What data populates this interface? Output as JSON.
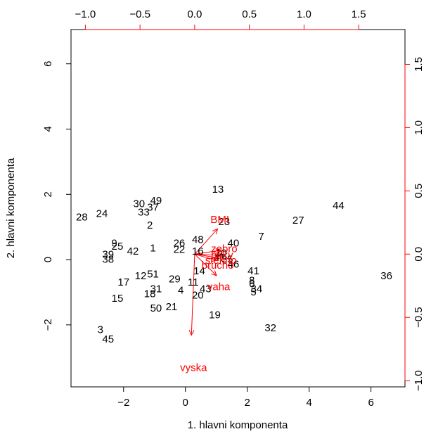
{
  "chart_data": {
    "type": "biplot",
    "xlabel": "1. hlavni komponenta",
    "ylabel": "2. hlavni komponenta",
    "bottom_ticks": [
      "−2",
      "0",
      "2",
      "4",
      "6"
    ],
    "bottom_tick_values": [
      -2,
      0,
      2,
      4,
      6
    ],
    "left_ticks": [
      "−2",
      "0",
      "2",
      "4",
      "6"
    ],
    "left_tick_values": [
      -2,
      0,
      2,
      4,
      6
    ],
    "top_ticks": [
      "−1.0",
      "−0.5",
      "0.0",
      "0.5",
      "1.0",
      "1.5"
    ],
    "top_tick_values": [
      -1.0,
      -0.5,
      0.0,
      0.5,
      1.0,
      1.5
    ],
    "right_ticks": [
      "−1.0",
      "−0.5",
      "0.0",
      "0.5",
      "1.0",
      "1.5"
    ],
    "right_tick_values": [
      -1.0,
      -0.5,
      0.0,
      0.5,
      1.0,
      1.5
    ],
    "xlim": [
      -3.7,
      7.1
    ],
    "ylim": [
      -3.9,
      7.05
    ],
    "loading_xlim": [
      -1.131,
      1.923
    ],
    "loading_ylim": [
      -1.049,
      1.775
    ],
    "scores_color": "#000000",
    "loadings_color": "#ff0000",
    "observations": [
      {
        "label": "1",
        "x": -1.05,
        "y": 0.35
      },
      {
        "label": "2",
        "x": -1.15,
        "y": 1.05
      },
      {
        "label": "3",
        "x": -2.75,
        "y": -2.15
      },
      {
        "label": "4",
        "x": -0.15,
        "y": -0.95
      },
      {
        "label": "5",
        "x": 2.2,
        "y": -1.0
      },
      {
        "label": "6",
        "x": 2.15,
        "y": -0.75
      },
      {
        "label": "7",
        "x": 2.45,
        "y": 0.7
      },
      {
        "label": "8",
        "x": 2.15,
        "y": -0.65
      },
      {
        "label": "9",
        "x": -2.3,
        "y": 0.5
      },
      {
        "label": "10",
        "x": 1.15,
        "y": 0.2
      },
      {
        "label": "11",
        "x": 0.25,
        "y": -0.7
      },
      {
        "label": "12",
        "x": -1.45,
        "y": -0.5
      },
      {
        "label": "13",
        "x": 1.05,
        "y": 2.15
      },
      {
        "label": "14",
        "x": 0.45,
        "y": -0.35
      },
      {
        "label": "15",
        "x": -2.2,
        "y": -1.2
      },
      {
        "label": "16",
        "x": 0.4,
        "y": 0.25
      },
      {
        "label": "17",
        "x": -2.0,
        "y": -0.7
      },
      {
        "label": "18",
        "x": -1.15,
        "y": -1.05
      },
      {
        "label": "19",
        "x": 0.95,
        "y": -1.7
      },
      {
        "label": "20",
        "x": 0.4,
        "y": -1.1
      },
      {
        "label": "21",
        "x": -0.45,
        "y": -1.45
      },
      {
        "label": "22",
        "x": -0.2,
        "y": 0.3
      },
      {
        "label": "23",
        "x": 1.25,
        "y": 1.15
      },
      {
        "label": "24",
        "x": -2.7,
        "y": 1.4
      },
      {
        "label": "25",
        "x": -2.2,
        "y": 0.4
      },
      {
        "label": "26",
        "x": -0.2,
        "y": 0.5
      },
      {
        "label": "27",
        "x": 3.65,
        "y": 1.2
      },
      {
        "label": "28",
        "x": -3.35,
        "y": 1.3
      },
      {
        "label": "29",
        "x": -0.35,
        "y": -0.6
      },
      {
        "label": "30",
        "x": -1.5,
        "y": 1.7
      },
      {
        "label": "31",
        "x": -0.95,
        "y": -0.9
      },
      {
        "label": "32",
        "x": 2.75,
        "y": -2.1
      },
      {
        "label": "33",
        "x": -1.35,
        "y": 1.45
      },
      {
        "label": "34",
        "x": 2.3,
        "y": -0.9
      },
      {
        "label": "35",
        "x": 1.35,
        "y": 0.0
      },
      {
        "label": "36",
        "x": 6.5,
        "y": -0.5
      },
      {
        "label": "37",
        "x": -1.05,
        "y": 1.6
      },
      {
        "label": "38",
        "x": -2.5,
        "y": 0.0
      },
      {
        "label": "39",
        "x": -2.5,
        "y": 0.15
      },
      {
        "label": "40",
        "x": 1.55,
        "y": 0.5
      },
      {
        "label": "41",
        "x": 2.2,
        "y": -0.35
      },
      {
        "label": "42",
        "x": -1.7,
        "y": 0.25
      },
      {
        "label": "43",
        "x": 0.65,
        "y": -0.9
      },
      {
        "label": "44",
        "x": 4.95,
        "y": 1.65
      },
      {
        "label": "45",
        "x": -2.5,
        "y": -2.45
      },
      {
        "label": "46",
        "x": 1.55,
        "y": -0.15
      },
      {
        "label": "47",
        "x": 1.1,
        "y": 0.05
      },
      {
        "label": "48",
        "x": 0.4,
        "y": 0.6
      },
      {
        "label": "49",
        "x": -0.95,
        "y": 1.8
      },
      {
        "label": "50",
        "x": -0.95,
        "y": -1.5
      },
      {
        "label": "51",
        "x": -1.05,
        "y": -0.45
      }
    ],
    "variables": [
      {
        "label": "BMI",
        "x": 0.21,
        "y": 0.2
      },
      {
        "label": "zebro",
        "x": 0.24,
        "y": 0.03
      },
      {
        "label": "boky",
        "x": 0.24,
        "y": -0.01
      },
      {
        "label": "stehno",
        "x": 0.22,
        "y": -0.03
      },
      {
        "label": "brucho",
        "x": 0.2,
        "y": -0.05
      },
      {
        "label": "vaha",
        "x": 0.2,
        "y": -0.17
      },
      {
        "label": "vyska",
        "x": -0.03,
        "y": -0.64
      }
    ],
    "variable_label_anchors": [
      {
        "label": "BMI",
        "x": 0.23,
        "y": 0.27
      },
      {
        "label": "zebro",
        "x": 0.27,
        "y": 0.04
      },
      {
        "label": "boky",
        "x": 0.25,
        "y": -0.01
      },
      {
        "label": "stehno",
        "x": 0.24,
        "y": -0.05
      },
      {
        "label": "brucho",
        "x": 0.21,
        "y": -0.09
      },
      {
        "label": "vaha",
        "x": 0.22,
        "y": -0.26
      },
      {
        "label": "vyska",
        "x": -0.01,
        "y": -0.9
      }
    ]
  }
}
